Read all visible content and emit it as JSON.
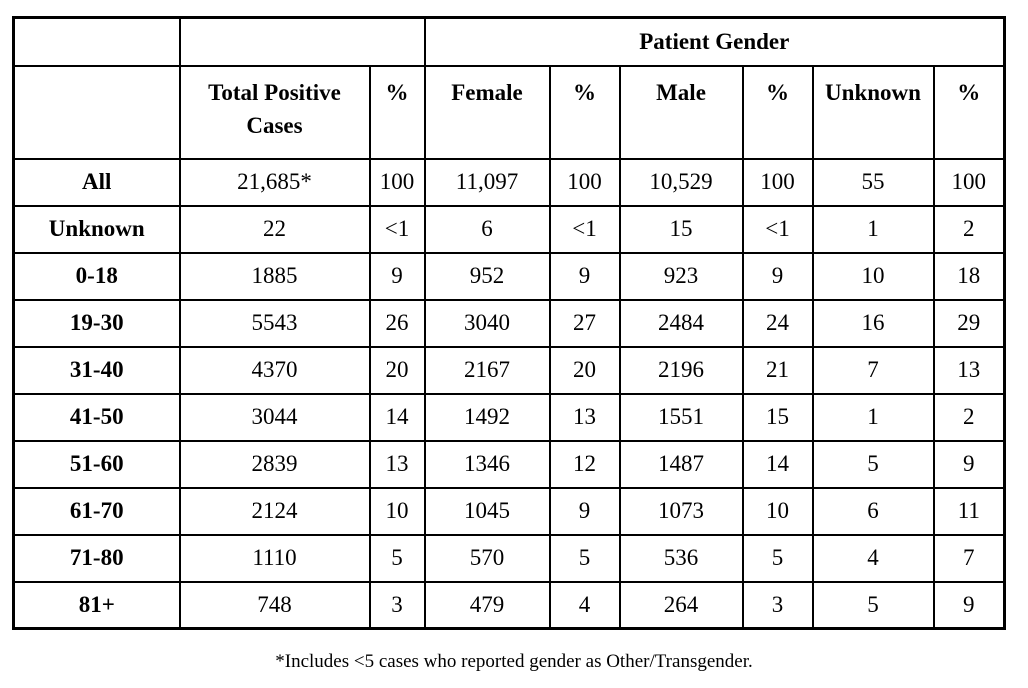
{
  "table": {
    "gender_header": "Patient Gender",
    "columns": [
      "",
      "Total Positive Cases",
      "%",
      "Female",
      "%",
      "Male",
      "%",
      "Unknown",
      "%"
    ],
    "rows": [
      {
        "label": "All",
        "values": [
          "21,685*",
          "100",
          "11,097",
          "100",
          "10,529",
          "100",
          "55",
          "100"
        ]
      },
      {
        "label": "Unknown",
        "values": [
          "22",
          "<1",
          "6",
          "<1",
          "15",
          "<1",
          "1",
          "2"
        ]
      },
      {
        "label": "0-18",
        "values": [
          "1885",
          "9",
          "952",
          "9",
          "923",
          "9",
          "10",
          "18"
        ]
      },
      {
        "label": "19-30",
        "values": [
          "5543",
          "26",
          "3040",
          "27",
          "2484",
          "24",
          "16",
          "29"
        ]
      },
      {
        "label": "31-40",
        "values": [
          "4370",
          "20",
          "2167",
          "20",
          "2196",
          "21",
          "7",
          "13"
        ]
      },
      {
        "label": "41-50",
        "values": [
          "3044",
          "14",
          "1492",
          "13",
          "1551",
          "15",
          "1",
          "2"
        ]
      },
      {
        "label": "51-60",
        "values": [
          "2839",
          "13",
          "1346",
          "12",
          "1487",
          "14",
          "5",
          "9"
        ]
      },
      {
        "label": "61-70",
        "values": [
          "2124",
          "10",
          "1045",
          "9",
          "1073",
          "10",
          "6",
          "11"
        ]
      },
      {
        "label": "71-80",
        "values": [
          "1110",
          "5",
          "570",
          "5",
          "536",
          "5",
          "4",
          "7"
        ]
      },
      {
        "label": "81+",
        "values": [
          "748",
          "3",
          "479",
          "4",
          "264",
          "3",
          "5",
          "9"
        ]
      }
    ],
    "footnote": "*Includes <5 cases who reported gender as Other/Transgender.",
    "colors": {
      "border": "#000000",
      "text": "#000000",
      "background": "#ffffff"
    }
  }
}
